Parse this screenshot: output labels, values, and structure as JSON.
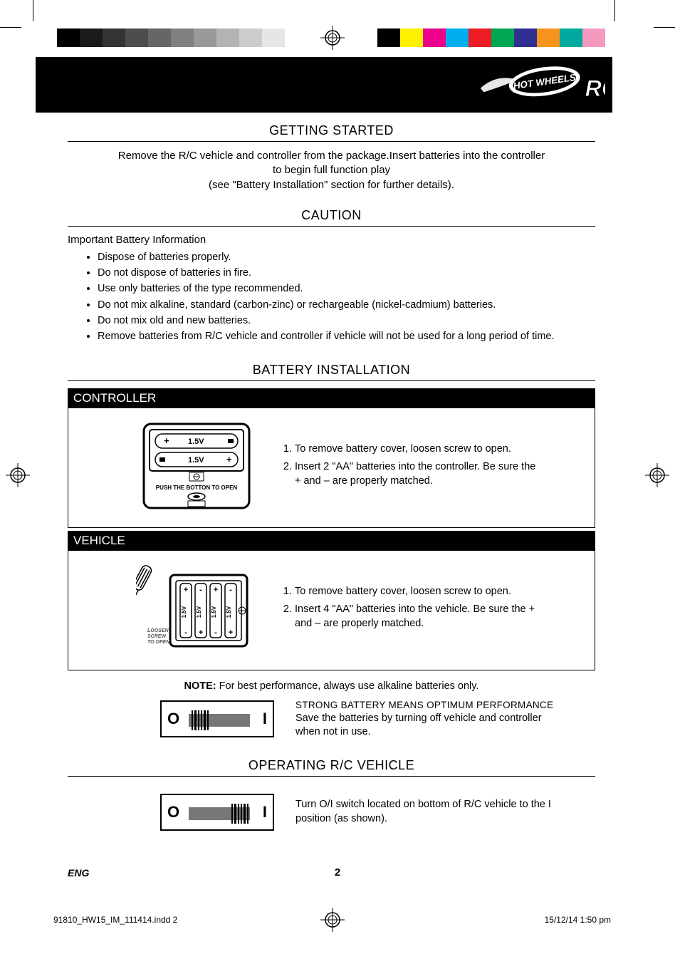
{
  "colorbars": {
    "left": [
      "#000000",
      "#1a1a1a",
      "#333333",
      "#4d4d4d",
      "#666666",
      "#808080",
      "#999999",
      "#b3b3b3",
      "#cccccc",
      "#e6e6e6"
    ],
    "right": [
      "#000000",
      "#fff200",
      "#ec008c",
      "#00aeef",
      "#ed1c24",
      "#00a651",
      "#2e3192",
      "#f7941e",
      "#00a99d",
      "#f49ac1"
    ]
  },
  "brand_text": "HOT WHEELS",
  "brand_suffix": "RC",
  "section1": {
    "title": "GETTING STARTED",
    "line1": "Remove the R/C vehicle and controller from the package.Insert batteries into the controller",
    "line2": "to begin full function play",
    "line3": "(see \"Battery Installation\" section for further details)."
  },
  "section2": {
    "title": "CAUTION",
    "subtitle": "Important Battery Information",
    "items": [
      "Dispose of batteries properly.",
      "Do not dispose of batteries in fire.",
      "Use only batteries of the type recommended.",
      "Do not mix alkaline, standard (carbon-zinc) or rechargeable (nickel-cadmium) batteries.",
      "Do not mix old and new batteries.",
      "Remove batteries from R/C vehicle and controller if vehicle will not be used for a long period of time."
    ]
  },
  "section3": {
    "title": "BATTERY INSTALLATION",
    "controller": {
      "header": "CONTROLLER",
      "diagram": {
        "batt_label": "1.5V",
        "push_text": "PUSH THE BOTTON TO OPEN"
      },
      "steps": [
        "To remove battery cover, loosen screw to open.",
        "Insert 2 \"AA\" batteries into the controller. Be sure the + and – are properly matched."
      ]
    },
    "vehicle": {
      "header": "VEHICLE",
      "diagram": {
        "batt_label": "1.5V",
        "loosen_text1": "LOOSEN",
        "loosen_text2": "SCREW",
        "loosen_text3": "TO OPEN"
      },
      "steps": [
        "To remove battery cover, loosen screw to open.",
        "Insert 4 \"AA\" batteries into the vehicle. Be sure the + and – are properly matched."
      ]
    },
    "note_label": "NOTE:",
    "note_text": "  For best performance, always use alkaline batteries only.",
    "switch1": {
      "O": "O",
      "I": "I",
      "strong": "STRONG BATTERY MEANS OPTIMUM PERFORMANCE",
      "text": "Save the batteries by turning off vehicle and controller when not in use."
    }
  },
  "section4": {
    "title": "OPERATING R/C VEHICLE",
    "switch": {
      "O": "O",
      "I": "I",
      "text_before": "Turn ",
      "text_oi": "O/I",
      "text_mid": " switch located on bottom of R/C vehicle to the ",
      "text_i": "I",
      "text_after": " position (as shown)."
    }
  },
  "footer": {
    "eng": "ENG",
    "page": "2",
    "indd": "91810_HW15_IM_111414.indd   2",
    "date": "15/12/14   1:50 pm"
  }
}
